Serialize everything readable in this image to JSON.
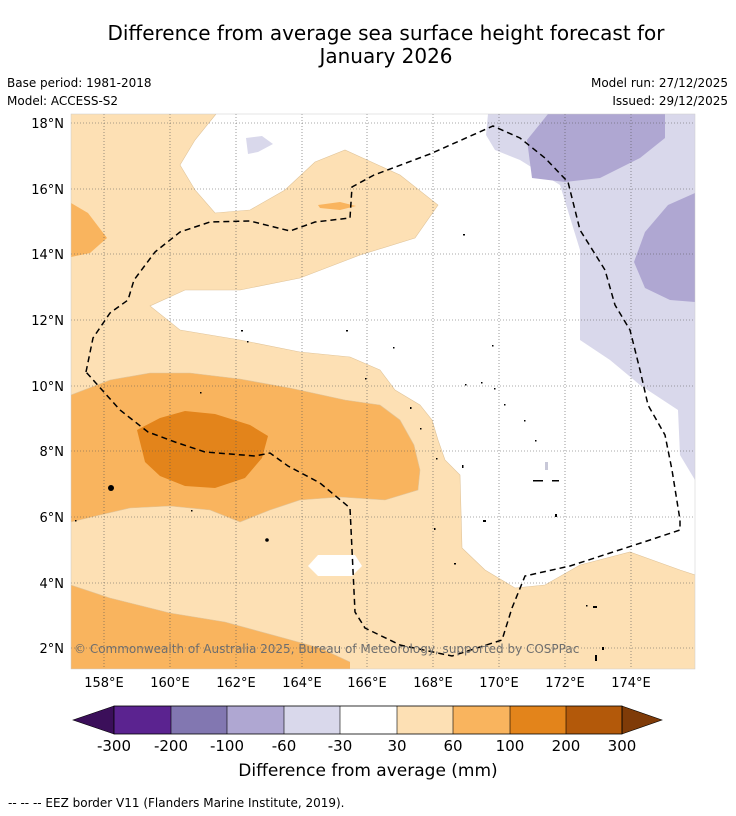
{
  "title": {
    "line1": "Difference from average sea surface height forecast for",
    "line2": "January 2026"
  },
  "meta": {
    "base_period": "Base period: 1981-2018",
    "model": "Model: ACCESS-S2",
    "model_run": "Model run: 27/12/2025",
    "issued": "Issued: 29/12/2025"
  },
  "map": {
    "lat_labels": [
      "18°N",
      "16°N",
      "14°N",
      "12°N",
      "10°N",
      "8°N",
      "6°N",
      "4°N",
      "2°N"
    ],
    "lat_values": [
      18,
      16,
      14,
      12,
      10,
      8,
      6,
      4,
      2
    ],
    "lon_labels": [
      "158°E",
      "160°E",
      "162°E",
      "164°E",
      "166°E",
      "168°E",
      "170°E",
      "172°E",
      "174°E"
    ],
    "lon_values": [
      158,
      160,
      162,
      164,
      166,
      168,
      170,
      172,
      174
    ],
    "copyright": "© Commonwealth of Australia 2025, Bureau of Meteorology, supported by COSPPac"
  },
  "colorbar": {
    "ticks": [
      "-300",
      "-200",
      "-100",
      "-60",
      "-30",
      "30",
      "60",
      "100",
      "200",
      "300"
    ],
    "colors": [
      "#5b2390",
      "#8277b1",
      "#afa7d2",
      "#d9d8eb",
      "#ffffff",
      "#fde0b4",
      "#f9b45e",
      "#e3841b",
      "#b3590a"
    ],
    "under_color": "#3b0f5a",
    "over_color": "#7f3b08",
    "label": "Difference from average (mm)"
  },
  "footnote": "--  --  -- EEZ border V11 (Flanders Marine Institute, 2019)."
}
